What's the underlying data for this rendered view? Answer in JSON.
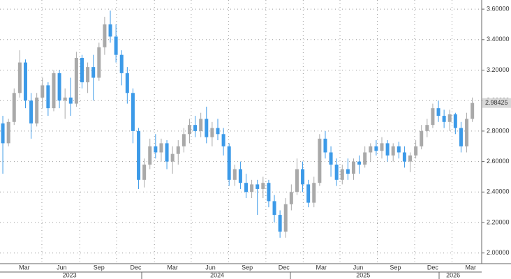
{
  "chart_data": {
    "type": "candlestick",
    "open": [
      2.85,
      2.72,
      2.86,
      3.05,
      3.25,
      3.0,
      2.85,
      3.02,
      3.1,
      2.95,
      3.18,
      3.0,
      3.02,
      2.98,
      3.28,
      3.12,
      3.22,
      3.15,
      3.35,
      3.5,
      3.42,
      3.3,
      3.18,
      3.05,
      2.8,
      2.48,
      2.58,
      2.7,
      2.66,
      2.72,
      2.6,
      2.65,
      2.7,
      2.78,
      2.84,
      2.8,
      2.88,
      2.76,
      2.82,
      2.78,
      2.7,
      2.48,
      2.55,
      2.46,
      2.4,
      2.45,
      2.42,
      2.46,
      2.34,
      2.25,
      2.14,
      2.32,
      2.4,
      2.55,
      2.45,
      2.33,
      2.46,
      2.75,
      2.66,
      2.58,
      2.48,
      2.55,
      2.52,
      2.6,
      2.58,
      2.66,
      2.7,
      2.67,
      2.72,
      2.64,
      2.7,
      2.66,
      2.6,
      2.64,
      2.7,
      2.8,
      2.84,
      2.95,
      2.9,
      2.86,
      2.91,
      2.82,
      2.7,
      2.88
    ],
    "high": [
      2.9,
      2.88,
      3.08,
      3.33,
      3.27,
      3.05,
      3.05,
      3.15,
      3.12,
      3.2,
      3.2,
      3.08,
      3.15,
      3.32,
      3.3,
      3.25,
      3.3,
      3.38,
      3.55,
      3.59,
      3.5,
      3.33,
      3.22,
      3.08,
      2.82,
      2.62,
      2.75,
      2.78,
      2.75,
      2.74,
      2.7,
      2.74,
      2.82,
      2.88,
      2.9,
      2.92,
      2.96,
      2.86,
      2.88,
      2.82,
      2.72,
      2.58,
      2.6,
      2.52,
      2.48,
      2.48,
      2.5,
      2.48,
      2.38,
      2.28,
      2.36,
      2.45,
      2.62,
      2.6,
      2.48,
      2.5,
      2.78,
      2.8,
      2.7,
      2.62,
      2.58,
      2.62,
      2.62,
      2.64,
      2.7,
      2.72,
      2.74,
      2.76,
      2.74,
      2.72,
      2.73,
      2.7,
      2.66,
      2.74,
      2.84,
      2.88,
      2.98,
      3.0,
      2.94,
      2.94,
      2.92,
      2.86,
      2.92,
      3.02
    ],
    "low": [
      2.52,
      2.7,
      2.84,
      3.02,
      2.95,
      2.75,
      2.83,
      2.95,
      2.9,
      2.93,
      2.95,
      2.88,
      2.9,
      2.96,
      3.08,
      3.05,
      3.0,
      3.13,
      3.3,
      3.38,
      3.25,
      3.1,
      2.98,
      2.72,
      2.42,
      2.43,
      2.55,
      2.62,
      2.6,
      2.55,
      2.52,
      2.58,
      2.66,
      2.72,
      2.76,
      2.76,
      2.72,
      2.7,
      2.74,
      2.64,
      2.44,
      2.44,
      2.42,
      2.36,
      2.36,
      2.25,
      2.36,
      2.3,
      2.2,
      2.1,
      2.1,
      2.28,
      2.38,
      2.4,
      2.3,
      2.3,
      2.44,
      2.62,
      2.5,
      2.44,
      2.45,
      2.48,
      2.48,
      2.52,
      2.56,
      2.6,
      2.64,
      2.62,
      2.6,
      2.6,
      2.62,
      2.56,
      2.53,
      2.62,
      2.68,
      2.76,
      2.82,
      2.86,
      2.82,
      2.8,
      2.78,
      2.66,
      2.66,
      2.86
    ],
    "close": [
      2.72,
      2.86,
      3.05,
      3.25,
      3.0,
      2.85,
      3.02,
      3.1,
      2.95,
      3.18,
      3.0,
      3.02,
      2.98,
      3.28,
      3.12,
      3.22,
      3.15,
      3.35,
      3.5,
      3.42,
      3.3,
      3.18,
      3.05,
      2.8,
      2.48,
      2.58,
      2.7,
      2.66,
      2.72,
      2.6,
      2.65,
      2.7,
      2.78,
      2.84,
      2.8,
      2.88,
      2.76,
      2.82,
      2.78,
      2.7,
      2.48,
      2.55,
      2.46,
      2.4,
      2.45,
      2.42,
      2.46,
      2.34,
      2.25,
      2.14,
      2.32,
      2.4,
      2.55,
      2.45,
      2.33,
      2.46,
      2.75,
      2.66,
      2.58,
      2.48,
      2.55,
      2.52,
      2.6,
      2.58,
      2.66,
      2.7,
      2.67,
      2.72,
      2.64,
      2.7,
      2.66,
      2.6,
      2.64,
      2.7,
      2.8,
      2.84,
      2.95,
      2.9,
      2.86,
      2.91,
      2.82,
      2.7,
      2.88,
      2.98425
    ],
    "up_color": "#a9a9a9",
    "down_color": "#3c9ae8",
    "ylim": [
      1.93,
      3.66
    ],
    "yticks": [
      {
        "value": 2.0,
        "label": "2.00000"
      },
      {
        "value": 2.2,
        "label": "2.20000"
      },
      {
        "value": 2.4,
        "label": "2.40000"
      },
      {
        "value": 2.6,
        "label": "2.60000"
      },
      {
        "value": 2.8,
        "label": "2.80000"
      },
      {
        "value": 3.0,
        "label": "3.00000"
      },
      {
        "value": 3.2,
        "label": "3.20000"
      },
      {
        "value": 3.4,
        "label": "3.40000"
      },
      {
        "value": 3.6,
        "label": "3.60000"
      }
    ],
    "xlim": [
      -0.5,
      84.4
    ],
    "xticks": [
      {
        "value": 3.8,
        "label": "Mar"
      },
      {
        "value": 10.4,
        "label": "Jun"
      },
      {
        "value": 17.0,
        "label": "Sep"
      },
      {
        "value": 23.5,
        "label": "Dec"
      },
      {
        "value": 30.0,
        "label": "Mar"
      },
      {
        "value": 36.7,
        "label": "Jun"
      },
      {
        "value": 43.2,
        "label": "Sep"
      },
      {
        "value": 49.7,
        "label": "Dec"
      },
      {
        "value": 56.3,
        "label": "Mar"
      },
      {
        "value": 62.8,
        "label": "Jun"
      },
      {
        "value": 69.4,
        "label": "Sep"
      },
      {
        "value": 76.0,
        "label": "Dec"
      },
      {
        "value": 82.7,
        "label": "Mar"
      }
    ],
    "years": [
      {
        "value": 11.8,
        "label": "2023"
      },
      {
        "value": 37.9,
        "label": "2024"
      },
      {
        "value": 63.7,
        "label": "2025"
      },
      {
        "value": 79.6,
        "label": "2026"
      }
    ],
    "xgrid": [
      6.9,
      13.6,
      20.1,
      26.8,
      33.3,
      39.9,
      46.5,
      53.1,
      59.6,
      66.2,
      72.8,
      79.4
    ],
    "grid": true,
    "last_price": 2.98425
  }
}
